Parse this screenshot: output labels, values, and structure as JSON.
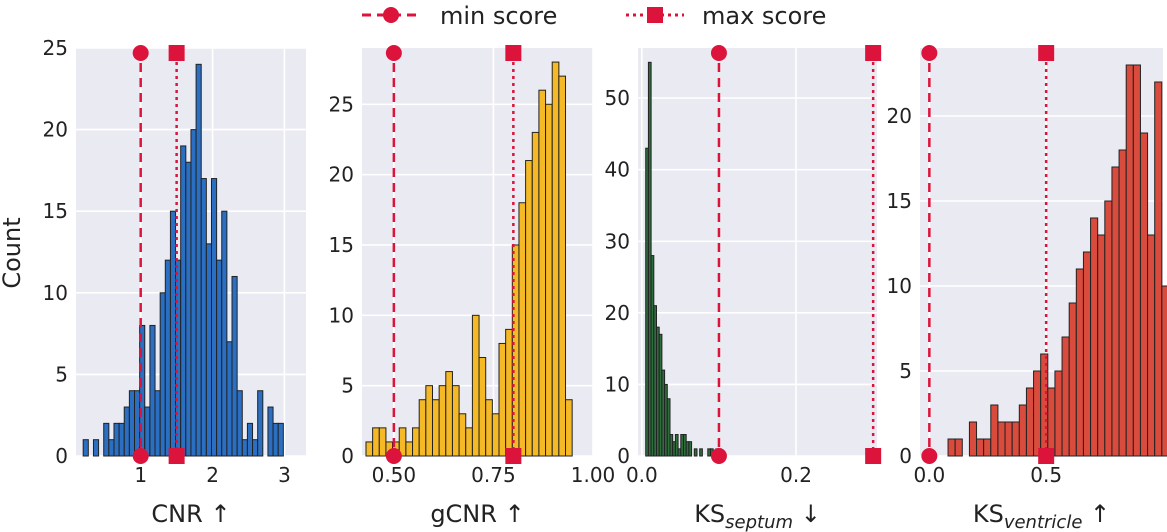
{
  "legend": {
    "items": [
      {
        "label": "min score",
        "style": "dashed",
        "marker": "circle",
        "color": "#dc143c"
      },
      {
        "label": "max score",
        "style": "dotted",
        "marker": "square",
        "color": "#dc143c"
      }
    ]
  },
  "ylabel": "Count",
  "colors": {
    "background": "#eaeaf2",
    "grid": "#ffffff",
    "edge": "#222222",
    "marker_lines": "#dc143c"
  },
  "chart_data": [
    {
      "type": "bar",
      "xlabel": "CNR",
      "xlabel_sub": "",
      "arrow": "↑",
      "color": "#2b6fc2",
      "xlim": [
        0.1,
        3.3
      ],
      "ylim": [
        0,
        25
      ],
      "xticks": [
        1,
        2,
        3
      ],
      "xtick_labels": [
        "1",
        "2",
        "3"
      ],
      "yticks": [
        0,
        5,
        10,
        15,
        20,
        25
      ],
      "ytick_labels": [
        "0",
        "5",
        "10",
        "15",
        "20",
        "25"
      ],
      "bin_start": 0.2,
      "bin_width": 0.0714,
      "counts": [
        1,
        0,
        1,
        0,
        2,
        1,
        2,
        2,
        3,
        4,
        4,
        8,
        3,
        8,
        4,
        10,
        12,
        15,
        12,
        19,
        18,
        20,
        24,
        17,
        13,
        17,
        12,
        15,
        7,
        11,
        4,
        1,
        2,
        1,
        4,
        0,
        3,
        2,
        2
      ],
      "min_score": 1.0,
      "max_score": 1.5
    },
    {
      "type": "bar",
      "xlabel": "gCNR",
      "xlabel_sub": "",
      "arrow": "↑",
      "color": "#f5b925",
      "xlim": [
        0.42,
        1.0
      ],
      "ylim": [
        0,
        29
      ],
      "xticks": [
        0.5,
        0.75,
        1.0
      ],
      "xtick_labels": [
        "0.50",
        "0.75",
        "1.00"
      ],
      "yticks": [
        0,
        5,
        10,
        15,
        20,
        25
      ],
      "ytick_labels": [
        "0",
        "5",
        "10",
        "15",
        "20",
        "25"
      ],
      "bin_start": 0.43,
      "bin_width": 0.0167,
      "counts": [
        1,
        2,
        2,
        1,
        1,
        2,
        1,
        2,
        4,
        5,
        4,
        5,
        6,
        5,
        3,
        2,
        10,
        7,
        4,
        3,
        8,
        9,
        15,
        18,
        21,
        23,
        26,
        25,
        28,
        27,
        4
      ],
      "min_score": 0.5,
      "max_score": 0.8
    },
    {
      "type": "bar",
      "xlabel": "KS",
      "xlabel_sub": "septum",
      "arrow": "↓",
      "color": "#2d6e3c",
      "xlim": [
        -0.005,
        0.305
      ],
      "ylim": [
        0,
        57
      ],
      "xticks": [
        0.0,
        0.2
      ],
      "xtick_labels": [
        "0.0",
        "0.2"
      ],
      "yticks": [
        0,
        10,
        20,
        30,
        40,
        50
      ],
      "ytick_labels": [
        "0",
        "10",
        "20",
        "30",
        "40",
        "50"
      ],
      "bin_start": 0.005,
      "bin_width": 0.0035,
      "counts": [
        43,
        55,
        28,
        21,
        18,
        17,
        12,
        10,
        8,
        3,
        2,
        3,
        1,
        3,
        3,
        2,
        2,
        0,
        1,
        0,
        1,
        0,
        0,
        1,
        1,
        0,
        1,
        1
      ],
      "min_score": 0.1,
      "max_score": 0.3
    },
    {
      "type": "bar",
      "xlabel": "KS",
      "xlabel_sub": "ventricle",
      "arrow": "↑",
      "color": "#d94b3c",
      "xlim": [
        -0.04,
        1.0
      ],
      "ylim": [
        0,
        24
      ],
      "xticks": [
        0.0,
        0.5
      ],
      "xtick_labels": [
        "0.0",
        "0.5"
      ],
      "yticks": [
        0,
        5,
        10,
        15,
        20
      ],
      "ytick_labels": [
        "0",
        "5",
        "10",
        "15",
        "20"
      ],
      "bin_start": 0.08,
      "bin_width": 0.0305,
      "counts": [
        1,
        1,
        0,
        2,
        1,
        1,
        3,
        2,
        2,
        2,
        3,
        4,
        5,
        6,
        4,
        5,
        7,
        9,
        11,
        12,
        14,
        13,
        15,
        17,
        18,
        23,
        23,
        19,
        13,
        22,
        10,
        8,
        7
      ],
      "min_score": 0.0,
      "max_score": 0.5
    }
  ]
}
